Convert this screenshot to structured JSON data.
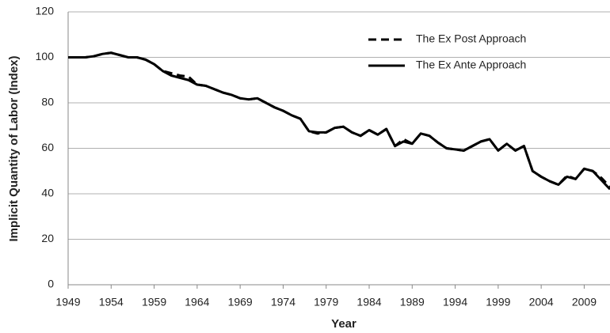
{
  "chart_data": {
    "type": "line",
    "x_label": "Year",
    "y_label": "Implicit Quantity of Labor (Index)",
    "x": [
      1949,
      1950,
      1951,
      1952,
      1953,
      1954,
      1955,
      1956,
      1957,
      1958,
      1959,
      1960,
      1961,
      1962,
      1963,
      1964,
      1965,
      1966,
      1967,
      1968,
      1969,
      1970,
      1971,
      1972,
      1973,
      1974,
      1975,
      1976,
      1977,
      1978,
      1979,
      1980,
      1981,
      1982,
      1983,
      1984,
      1985,
      1986,
      1987,
      1988,
      1989,
      1990,
      1991,
      1992,
      1993,
      1994,
      1995,
      1996,
      1997,
      1998,
      1999,
      2000,
      2001,
      2002,
      2003,
      2004,
      2005,
      2006,
      2007,
      2008,
      2009,
      2010,
      2011,
      2012
    ],
    "series": [
      {
        "name": "The Ex Post Approach",
        "color": "#000000",
        "dash": true,
        "values": [
          100,
          100,
          100,
          100.5,
          101.5,
          102,
          101,
          100,
          100,
          99,
          97,
          94,
          93,
          92,
          91.5,
          88,
          87.5,
          86,
          84.5,
          83.5,
          82,
          81.5,
          82,
          80,
          78,
          76.5,
          74.5,
          73,
          67.5,
          66.5,
          67,
          69,
          69.5,
          67,
          65.5,
          68,
          66,
          68.5,
          61,
          64,
          62,
          66.5,
          65.5,
          62.5,
          60,
          59.5,
          59,
          61,
          63,
          64,
          59,
          62,
          59,
          61,
          50,
          47.5,
          45.5,
          44,
          48,
          46.5,
          51,
          50,
          47,
          43
        ]
      },
      {
        "name": "The Ex Ante Approach",
        "color": "#000000",
        "dash": false,
        "values": [
          100,
          100,
          100,
          100.5,
          101.5,
          102,
          101,
          100,
          100,
          99,
          97,
          94,
          92,
          91,
          90,
          88,
          87.5,
          86,
          84.5,
          83.5,
          82,
          81.5,
          82,
          80,
          78,
          76.5,
          74.5,
          73,
          67.5,
          67,
          67,
          69,
          69.5,
          67,
          65.5,
          68,
          66,
          68.5,
          61,
          63,
          62,
          66.5,
          65.5,
          62.5,
          60,
          59.5,
          59,
          61,
          63,
          64,
          59,
          62,
          59,
          61,
          50,
          47.5,
          45.5,
          44,
          47.5,
          46.5,
          51,
          50,
          46,
          42
        ]
      }
    ],
    "xlim": [
      1949,
      2012
    ],
    "xticks": [
      1949,
      1954,
      1959,
      1964,
      1969,
      1974,
      1979,
      1984,
      1989,
      1994,
      1999,
      2004,
      2009
    ],
    "ylim": [
      0,
      120
    ],
    "yticks": [
      0,
      20,
      40,
      60,
      80,
      100,
      120
    ],
    "grid": true,
    "legend": "upper right"
  }
}
